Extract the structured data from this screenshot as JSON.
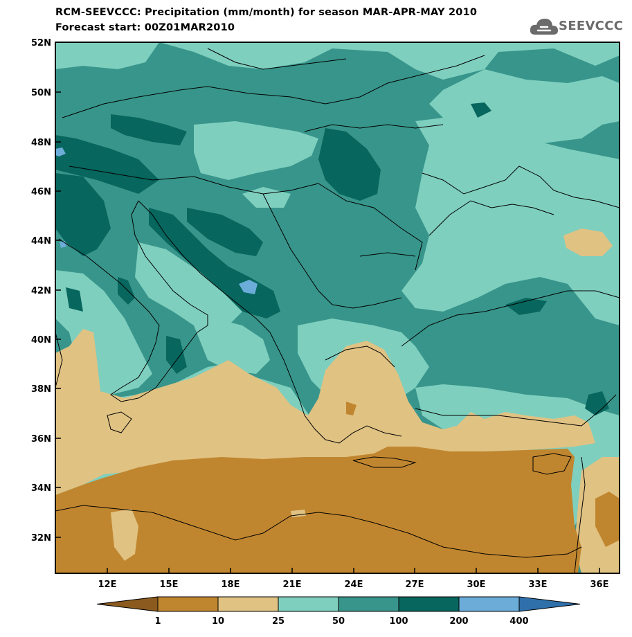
{
  "header": {
    "title_line1": "RCM-SEEVCCC: Precipitation (mm/month) for season MAR-APR-MAY 2010",
    "title_line2": "Forecast start: 00Z01MAR2010"
  },
  "logo": {
    "text": "SEEVCCC",
    "icon": "cloud-icon"
  },
  "map": {
    "lat_labels": [
      "52N",
      "50N",
      "48N",
      "46N",
      "44N",
      "42N",
      "40N",
      "38N",
      "36N",
      "34N",
      "32N"
    ],
    "lon_labels": [
      "12E",
      "15E",
      "18E",
      "21E",
      "24E",
      "27E",
      "30E",
      "33E",
      "36E"
    ],
    "lat_range": [
      30.5,
      52
    ],
    "lon_range": [
      9.5,
      37
    ]
  },
  "colorbar": {
    "breaks": [
      "1",
      "10",
      "25",
      "50",
      "100",
      "200",
      "400"
    ],
    "colors": [
      "#8b5a1e",
      "#c0862f",
      "#e0c283",
      "#7fcfbe",
      "#38958b",
      "#07665d",
      "#6badd8",
      "#2f6faa"
    ]
  }
}
